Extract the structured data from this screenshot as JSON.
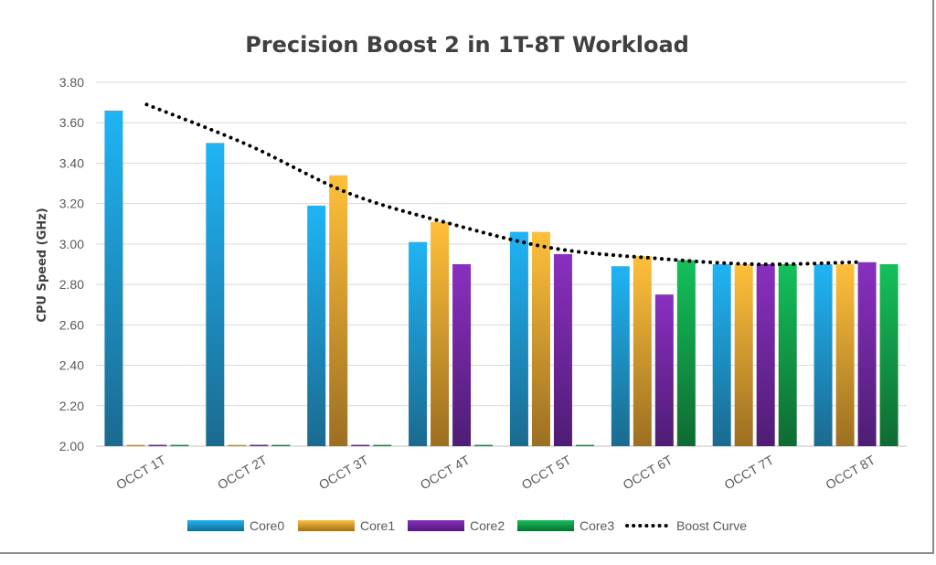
{
  "chart_data": {
    "type": "bar",
    "title": "Precision Boost 2 in 1T-8T Workload",
    "ylabel": "CPU Speed (GHz)",
    "xlabel": "",
    "ylim": [
      2.0,
      3.8
    ],
    "yticks": [
      "2.00",
      "2.20",
      "2.40",
      "2.60",
      "2.80",
      "3.00",
      "3.20",
      "3.40",
      "3.60",
      "3.80"
    ],
    "categories": [
      "OCCT 1T",
      "OCCT 2T",
      "OCCT 3T",
      "OCCT 4T",
      "OCCT 5T",
      "OCCT 6T",
      "OCCT 7T",
      "OCCT 8T"
    ],
    "series": [
      {
        "name": "Core0",
        "color": "#1fb4f5",
        "dark": "#1b6a8f",
        "values": [
          3.66,
          3.5,
          3.19,
          3.01,
          3.06,
          2.89,
          2.9,
          2.9
        ]
      },
      {
        "name": "Core1",
        "color": "#ffc03a",
        "dark": "#9c6f22",
        "values": [
          2.0,
          2.0,
          3.34,
          3.11,
          3.06,
          2.94,
          2.9,
          2.9
        ]
      },
      {
        "name": "Core2",
        "color": "#8a2fc0",
        "dark": "#4e1d74",
        "values": [
          2.0,
          2.0,
          2.0,
          2.9,
          2.95,
          2.75,
          2.9,
          2.91
        ]
      },
      {
        "name": "Core3",
        "color": "#14c05a",
        "dark": "#0f6b32",
        "values": [
          2.0,
          2.0,
          2.0,
          2.0,
          2.0,
          2.92,
          2.9,
          2.9
        ]
      }
    ],
    "line_series": {
      "name": "Boost Curve",
      "color": "#000000",
      "style": "dotted",
      "values": [
        3.69,
        3.49,
        3.25,
        3.1,
        2.98,
        2.93,
        2.9,
        2.91
      ]
    },
    "grid": true,
    "legend_position": "bottom"
  }
}
